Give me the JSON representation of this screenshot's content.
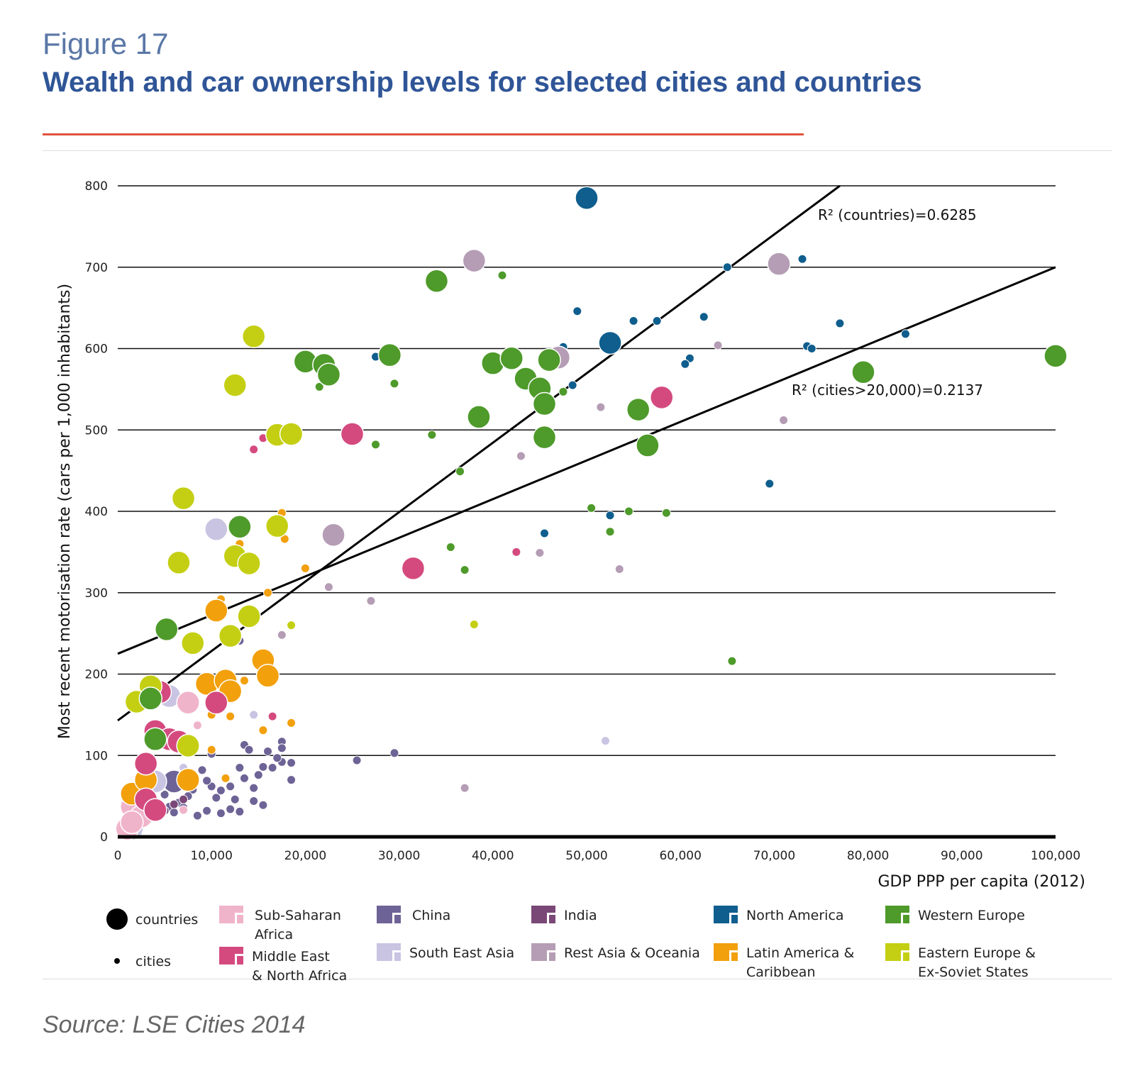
{
  "header": {
    "figure_label": "Figure 17",
    "title": "Wealth and car ownership levels for selected cities and countries"
  },
  "source": "Source: LSE Cities 2014",
  "colors": {
    "accent_rule": "#e0533f",
    "Sub-Saharan Africa": "#f0b4ca",
    "Middle East & North Africa": "#d44a7f",
    "China": "#6e6396",
    "South East Asia": "#c8c4e2",
    "India": "#7a4877",
    "Rest Asia & Oceania": "#b59db5",
    "North America": "#0f5e8e",
    "Latin America & Caribbean": "#f2a00c",
    "Western Europe": "#4e9a2a",
    "Eastern Europe & Ex-Soviet States": "#c4cf13"
  },
  "chart_data": {
    "type": "scatter",
    "title": "Wealth and car ownership levels for selected cities and countries",
    "xlabel": "GDP PPP per capita (2012)",
    "ylabel": "Most recent motorisation rate (cars per 1,000 inhabitants)",
    "xlim": [
      0,
      100000
    ],
    "ylim": [
      0,
      800
    ],
    "x_ticks": [
      0,
      10000,
      20000,
      30000,
      40000,
      50000,
      60000,
      70000,
      80000,
      90000,
      100000
    ],
    "x_tick_labels": [
      "0",
      "10,000",
      "20,000",
      "30,000",
      "40,000",
      "50,000",
      "60,000",
      "70,000",
      "80,000",
      "90,000",
      "100,000"
    ],
    "y_ticks": [
      0,
      100,
      200,
      300,
      400,
      500,
      600,
      700,
      800
    ],
    "y_tick_labels": [
      "0",
      "100",
      "200",
      "300",
      "400",
      "500",
      "600",
      "700",
      "800"
    ],
    "grid": "horizontal",
    "legend_position": "bottom",
    "legend_size": [
      {
        "label": "countries",
        "kind": "country"
      },
      {
        "label": "cities",
        "kind": "city"
      }
    ],
    "legend_regions": [
      {
        "label_lines": [
          "Sub-Saharan",
          "Africa"
        ],
        "region": "Sub-Saharan Africa"
      },
      {
        "label_lines": [
          "Middle East",
          "& North Africa"
        ],
        "region": "Middle East & North Africa"
      },
      {
        "label_lines": [
          "China"
        ],
        "region": "China"
      },
      {
        "label_lines": [
          "South East Asia"
        ],
        "region": "South East Asia"
      },
      {
        "label_lines": [
          "India"
        ],
        "region": "India"
      },
      {
        "label_lines": [
          "Rest Asia & Oceania"
        ],
        "region": "Rest Asia & Oceania"
      },
      {
        "label_lines": [
          "North America"
        ],
        "region": "North America"
      },
      {
        "label_lines": [
          "Latin America &",
          "Caribbean"
        ],
        "region": "Latin America & Caribbean"
      },
      {
        "label_lines": [
          "Western Europe"
        ],
        "region": "Western Europe"
      },
      {
        "label_lines": [
          "Eastern Europe &",
          "Ex-Soviet States"
        ],
        "region": "Eastern Europe & Ex-Soviet States"
      }
    ],
    "trendlines": [
      {
        "name": "countries",
        "label": "R² (countries)=0.6285",
        "x": [
          0,
          77000
        ],
        "y": [
          143,
          800
        ]
      },
      {
        "name": "cities>20,000",
        "label": "R² (cities>20,000)=0.2137",
        "x": [
          0,
          100000
        ],
        "y": [
          225,
          700
        ]
      }
    ],
    "series": [
      {
        "region": "North America",
        "countries": [
          [
            50000,
            785
          ],
          [
            52500,
            607
          ]
        ],
        "cities": [
          [
            27500,
            590
          ],
          [
            47500,
            602
          ],
          [
            48500,
            555
          ],
          [
            49000,
            646
          ],
          [
            52500,
            395
          ],
          [
            45500,
            373
          ],
          [
            55000,
            634
          ],
          [
            57500,
            634
          ],
          [
            61000,
            588
          ],
          [
            60500,
            581
          ],
          [
            62500,
            639
          ],
          [
            65000,
            700
          ],
          [
            73000,
            710
          ],
          [
            73500,
            603
          ],
          [
            74000,
            600
          ],
          [
            77000,
            631
          ],
          [
            84000,
            618
          ],
          [
            69500,
            434
          ]
        ]
      },
      {
        "region": "Western Europe",
        "countries": [
          [
            20000,
            584
          ],
          [
            22000,
            580
          ],
          [
            22500,
            568
          ],
          [
            29000,
            592
          ],
          [
            34000,
            683
          ],
          [
            38500,
            516
          ],
          [
            40000,
            582
          ],
          [
            42000,
            588
          ],
          [
            43500,
            563
          ],
          [
            45000,
            551
          ],
          [
            45500,
            532
          ],
          [
            45500,
            491
          ],
          [
            46000,
            586
          ],
          [
            55500,
            525
          ],
          [
            56500,
            481
          ],
          [
            79500,
            571
          ],
          [
            100000,
            591
          ],
          [
            13000,
            381
          ],
          [
            5200,
            255
          ],
          [
            4000,
            120
          ],
          [
            3500,
            170
          ]
        ],
        "cities": [
          [
            21500,
            553
          ],
          [
            27500,
            482
          ],
          [
            29500,
            557
          ],
          [
            33500,
            494
          ],
          [
            35500,
            356
          ],
          [
            36500,
            449
          ],
          [
            37000,
            328
          ],
          [
            41000,
            690
          ],
          [
            47500,
            547
          ],
          [
            50500,
            404
          ],
          [
            52500,
            375
          ],
          [
            54500,
            400
          ],
          [
            58500,
            398
          ],
          [
            65500,
            216
          ]
        ]
      },
      {
        "region": "Eastern Europe & Ex-Soviet States",
        "countries": [
          [
            14500,
            615
          ],
          [
            12500,
            555
          ],
          [
            17000,
            494
          ],
          [
            18500,
            495
          ],
          [
            7000,
            416
          ],
          [
            17000,
            382
          ],
          [
            6500,
            337
          ],
          [
            12500,
            345
          ],
          [
            14000,
            336
          ],
          [
            14000,
            271
          ],
          [
            8000,
            238
          ],
          [
            12000,
            247
          ],
          [
            3500,
            185
          ],
          [
            2000,
            166
          ],
          [
            7500,
            112
          ]
        ],
        "cities": [
          [
            38000,
            261
          ],
          [
            18500,
            260
          ]
        ]
      },
      {
        "region": "Middle East & North Africa",
        "countries": [
          [
            25000,
            495
          ],
          [
            31500,
            330
          ],
          [
            58000,
            540
          ],
          [
            10500,
            165
          ],
          [
            4500,
            178
          ],
          [
            4000,
            130
          ],
          [
            5500,
            120
          ],
          [
            6500,
            117
          ],
          [
            3000,
            90
          ],
          [
            3000,
            46
          ],
          [
            4000,
            33
          ]
        ],
        "cities": [
          [
            14500,
            476
          ],
          [
            15500,
            490
          ],
          [
            42500,
            350
          ],
          [
            16500,
            148
          ]
        ]
      },
      {
        "region": "Latin America & Caribbean",
        "countries": [
          [
            10500,
            278
          ],
          [
            15500,
            217
          ],
          [
            16000,
            198
          ],
          [
            9500,
            188
          ],
          [
            11500,
            192
          ],
          [
            12000,
            179
          ],
          [
            1500,
            53
          ],
          [
            7500,
            70
          ],
          [
            3000,
            70
          ]
        ],
        "cities": [
          [
            17500,
            398
          ],
          [
            17800,
            366
          ],
          [
            13000,
            360
          ],
          [
            20000,
            330
          ],
          [
            16000,
            300
          ],
          [
            11000,
            292
          ],
          [
            13500,
            192
          ],
          [
            10000,
            150
          ],
          [
            12000,
            148
          ],
          [
            15500,
            131
          ],
          [
            18500,
            140
          ],
          [
            10000,
            107
          ],
          [
            11500,
            72
          ]
        ]
      },
      {
        "region": "Rest Asia & Oceania",
        "countries": [
          [
            38000,
            708
          ],
          [
            70500,
            704
          ],
          [
            47000,
            589
          ],
          [
            23000,
            371
          ]
        ],
        "cities": [
          [
            51500,
            528
          ],
          [
            43000,
            468
          ],
          [
            71000,
            512
          ],
          [
            64000,
            604
          ],
          [
            45000,
            349
          ],
          [
            53500,
            329
          ],
          [
            22500,
            307
          ],
          [
            27000,
            290
          ],
          [
            17500,
            248
          ],
          [
            37000,
            60
          ]
        ]
      },
      {
        "region": "South East Asia",
        "countries": [
          [
            10500,
            378
          ],
          [
            5500,
            173
          ],
          [
            4000,
            68
          ],
          [
            1500,
            10
          ]
        ],
        "cities": [
          [
            14500,
            150
          ],
          [
            52000,
            118
          ],
          [
            7000,
            85
          ]
        ]
      },
      {
        "region": "Sub-Saharan Africa",
        "countries": [
          [
            7500,
            165
          ],
          [
            1500,
            37
          ],
          [
            2500,
            25
          ],
          [
            1000,
            10
          ],
          [
            1500,
            18
          ]
        ],
        "cities": [
          [
            8500,
            137
          ],
          [
            7000,
            33
          ]
        ]
      },
      {
        "region": "China",
        "countries": [
          [
            6000,
            68
          ]
        ],
        "cities": [
          [
            29500,
            103
          ],
          [
            25500,
            94
          ],
          [
            13500,
            113
          ],
          [
            14000,
            107
          ],
          [
            17500,
            117
          ],
          [
            17500,
            109
          ],
          [
            17500,
            92
          ],
          [
            18500,
            91
          ],
          [
            16000,
            105
          ],
          [
            17000,
            97
          ],
          [
            15000,
            76
          ],
          [
            15500,
            86
          ],
          [
            16500,
            85
          ],
          [
            14500,
            60
          ],
          [
            13000,
            85
          ],
          [
            13500,
            72
          ],
          [
            12000,
            62
          ],
          [
            11000,
            57
          ],
          [
            10500,
            48
          ],
          [
            10000,
            62
          ],
          [
            9500,
            69
          ],
          [
            9000,
            82
          ],
          [
            8000,
            58
          ],
          [
            7500,
            50
          ],
          [
            6500,
            42
          ],
          [
            5500,
            37
          ],
          [
            5000,
            52
          ],
          [
            4500,
            60
          ],
          [
            4000,
            32
          ],
          [
            6000,
            30
          ],
          [
            7000,
            36
          ],
          [
            8500,
            26
          ],
          [
            9500,
            32
          ],
          [
            11000,
            29
          ],
          [
            12000,
            34
          ],
          [
            13000,
            31
          ],
          [
            14500,
            44
          ],
          [
            15500,
            39
          ],
          [
            12500,
            46
          ],
          [
            10000,
            102
          ],
          [
            18500,
            70
          ],
          [
            13000,
            241
          ]
        ]
      },
      {
        "region": "India",
        "countries": [],
        "cities": [
          [
            7000,
            46
          ],
          [
            6000,
            40
          ],
          [
            5000,
            32
          ]
        ]
      }
    ]
  }
}
